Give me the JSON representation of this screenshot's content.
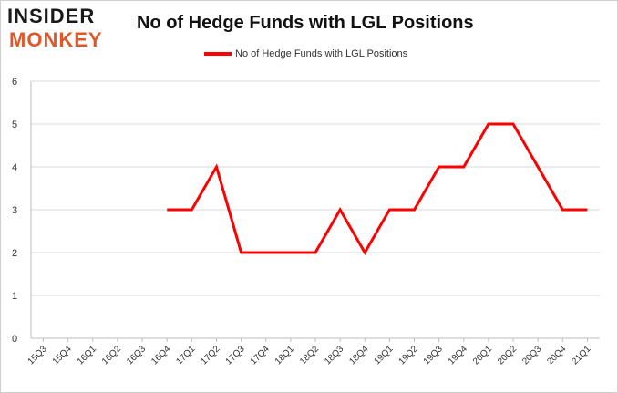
{
  "logo": {
    "line1": "INSIDER",
    "line2": "MONKEY"
  },
  "chart_data": {
    "type": "line",
    "title": "No of Hedge Funds with LGL Positions",
    "xlabel": "",
    "ylabel": "",
    "ylim": [
      0,
      6
    ],
    "yticks": [
      0,
      1,
      2,
      3,
      4,
      5,
      6
    ],
    "grid": true,
    "legend_position": "top-center",
    "x": [
      "15Q3",
      "15Q4",
      "16Q1",
      "16Q2",
      "16Q3",
      "16Q4",
      "17Q1",
      "17Q2",
      "17Q3",
      "17Q4",
      "18Q1",
      "18Q2",
      "18Q3",
      "18Q4",
      "19Q1",
      "19Q2",
      "19Q3",
      "19Q4",
      "20Q1",
      "20Q2",
      "20Q3",
      "20Q4",
      "21Q1"
    ],
    "series": [
      {
        "name": "No of Hedge Funds with LGL Positions",
        "color": "#ff0000",
        "values": [
          null,
          null,
          null,
          null,
          null,
          3,
          3,
          4,
          2,
          2,
          2,
          2,
          3,
          2,
          3,
          3,
          4,
          4,
          5,
          5,
          4,
          3,
          3
        ]
      }
    ]
  }
}
